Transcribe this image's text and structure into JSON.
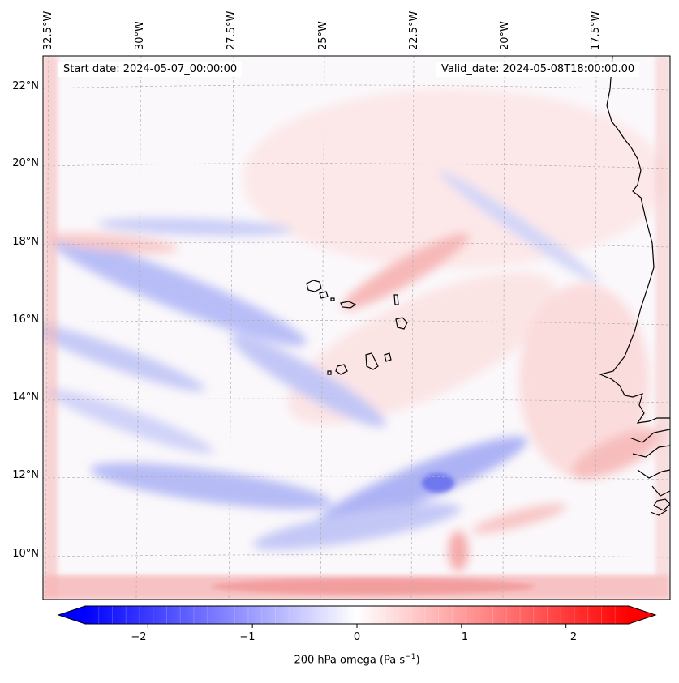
{
  "map": {
    "start_label": "Start date: 2024-05-07_00:00:00",
    "valid_label": "Valid_date: 2024-05-08T18:00:00.00",
    "lon_labels": [
      "32.5°W",
      "30°W",
      "27.5°W",
      "25°W",
      "22.5°W",
      "20°W",
      "17.5°W"
    ],
    "lat_labels": [
      "22°N",
      "20°N",
      "18°N",
      "16°N",
      "14°N",
      "12°N",
      "10°N"
    ],
    "field": "200 hPa omega",
    "colormap": "bwr",
    "coast_color": "#000000",
    "grid_color": "#b0b0b0"
  },
  "colorbar": {
    "label_prefix": "200 hPa omega (Pa s",
    "label_sup": "−1",
    "label_suffix": ")",
    "ticks": [
      "−2",
      "−1",
      "0",
      "1",
      "2"
    ],
    "range": [
      -2.6,
      2.6
    ],
    "extend": "both"
  }
}
